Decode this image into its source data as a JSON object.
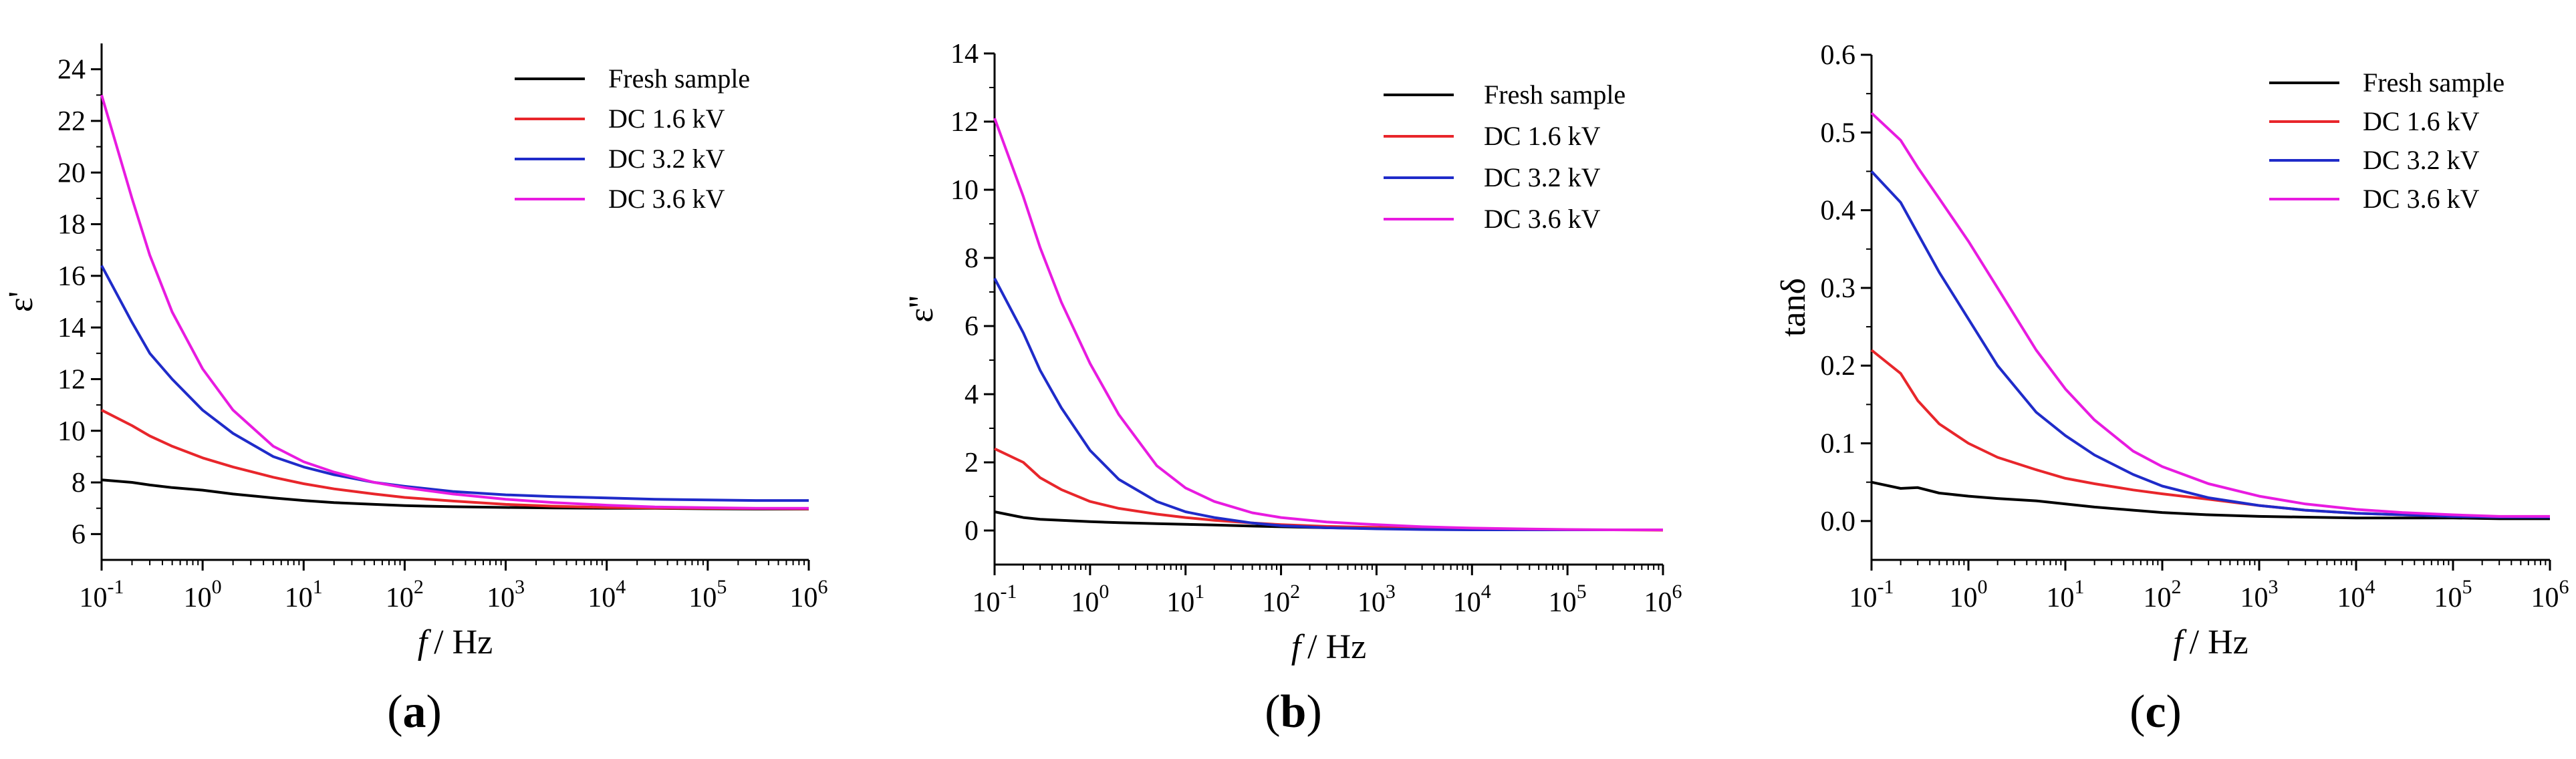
{
  "chart_data": [
    {
      "type": "line",
      "panel_label": "(a)",
      "panel_letter": "a",
      "ylabel": "ε'",
      "xlabel": "f / Hz",
      "xlabel_italic": "f",
      "xlabel_unit": "/ Hz",
      "xscale": "log",
      "x_ticks": [
        0.1,
        1,
        10,
        100,
        1000,
        10000,
        100000,
        1000000
      ],
      "x_tick_labels": [
        {
          "base": "10",
          "exp": "-1"
        },
        {
          "base": "10",
          "exp": "0"
        },
        {
          "base": "10",
          "exp": "1"
        },
        {
          "base": "10",
          "exp": "2"
        },
        {
          "base": "10",
          "exp": "3"
        },
        {
          "base": "10",
          "exp": "4"
        },
        {
          "base": "10",
          "exp": "5"
        },
        {
          "base": "10",
          "exp": "6"
        }
      ],
      "ylim": [
        5,
        25
      ],
      "y_ticks": [
        6,
        8,
        10,
        12,
        14,
        16,
        18,
        20,
        22,
        24
      ],
      "y_tick_labels": [
        "6",
        "8",
        "10",
        "12",
        "14",
        "16",
        "18",
        "20",
        "22",
        "24"
      ],
      "legend_position": "top-right",
      "x": [
        0.1,
        0.2,
        0.3,
        0.5,
        1,
        2,
        5,
        10,
        20,
        50,
        100,
        300,
        1000,
        3000,
        10000,
        30000,
        100000,
        300000,
        1000000
      ],
      "series": [
        {
          "name": "Fresh sample",
          "color": "#000000",
          "values": [
            8.1,
            8.0,
            7.9,
            7.8,
            7.7,
            7.55,
            7.4,
            7.3,
            7.22,
            7.15,
            7.1,
            7.06,
            7.03,
            7.01,
            7.0,
            7.0,
            6.98,
            6.97,
            6.97
          ]
        },
        {
          "name": "DC 1.6 kV",
          "color": "#e8262b",
          "values": [
            10.8,
            10.2,
            9.8,
            9.4,
            8.95,
            8.6,
            8.2,
            7.95,
            7.75,
            7.55,
            7.42,
            7.28,
            7.15,
            7.08,
            7.03,
            7.01,
            7.0,
            6.99,
            6.98
          ]
        },
        {
          "name": "DC 3.2 kV",
          "color": "#1f2bc9",
          "values": [
            16.4,
            14.2,
            13.0,
            12.0,
            10.8,
            9.9,
            9.0,
            8.6,
            8.3,
            8.0,
            7.85,
            7.65,
            7.52,
            7.45,
            7.4,
            7.35,
            7.32,
            7.3,
            7.3
          ]
        },
        {
          "name": "DC 3.6 kV",
          "color": "#e81be0",
          "values": [
            23.0,
            19.0,
            16.8,
            14.6,
            12.4,
            10.8,
            9.4,
            8.8,
            8.4,
            8.0,
            7.8,
            7.55,
            7.35,
            7.22,
            7.12,
            7.05,
            7.02,
            7.0,
            7.0
          ]
        }
      ]
    },
    {
      "type": "line",
      "panel_label": "(b)",
      "panel_letter": "b",
      "ylabel": "ε''",
      "xlabel": "f / Hz",
      "xlabel_italic": "f",
      "xlabel_unit": "/ Hz",
      "xscale": "log",
      "x_ticks": [
        0.1,
        1,
        10,
        100,
        1000,
        10000,
        100000,
        1000000
      ],
      "x_tick_labels": [
        {
          "base": "10",
          "exp": "-1"
        },
        {
          "base": "10",
          "exp": "0"
        },
        {
          "base": "10",
          "exp": "1"
        },
        {
          "base": "10",
          "exp": "2"
        },
        {
          "base": "10",
          "exp": "3"
        },
        {
          "base": "10",
          "exp": "4"
        },
        {
          "base": "10",
          "exp": "5"
        },
        {
          "base": "10",
          "exp": "6"
        }
      ],
      "ylim": [
        -1,
        14
      ],
      "y_ticks": [
        0,
        2,
        4,
        6,
        8,
        10,
        12,
        14
      ],
      "y_tick_labels": [
        "0",
        "2",
        "4",
        "6",
        "8",
        "10",
        "12",
        "14"
      ],
      "legend_position": "top-right",
      "x": [
        0.1,
        0.2,
        0.3,
        0.5,
        1,
        2,
        5,
        10,
        20,
        50,
        100,
        300,
        1000,
        3000,
        10000,
        30000,
        100000,
        300000,
        1000000
      ],
      "series": [
        {
          "name": "Fresh sample",
          "color": "#000000",
          "values": [
            0.55,
            0.38,
            0.33,
            0.3,
            0.26,
            0.23,
            0.2,
            0.18,
            0.16,
            0.13,
            0.11,
            0.08,
            0.06,
            0.04,
            0.03,
            0.02,
            0.02,
            0.02,
            0.02
          ]
        },
        {
          "name": "DC 1.6 kV",
          "color": "#e8262b",
          "values": [
            2.4,
            2.0,
            1.55,
            1.2,
            0.85,
            0.65,
            0.48,
            0.38,
            0.3,
            0.22,
            0.17,
            0.12,
            0.09,
            0.06,
            0.04,
            0.03,
            0.02,
            0.02,
            0.01
          ]
        },
        {
          "name": "DC 3.2 kV",
          "color": "#1f2bc9",
          "values": [
            7.4,
            5.8,
            4.7,
            3.6,
            2.35,
            1.5,
            0.85,
            0.55,
            0.38,
            0.22,
            0.14,
            0.08,
            0.05,
            0.03,
            0.02,
            0.02,
            0.02,
            0.02,
            0.02
          ]
        },
        {
          "name": "DC 3.6 kV",
          "color": "#e81be0",
          "values": [
            12.1,
            9.8,
            8.3,
            6.7,
            4.9,
            3.4,
            1.9,
            1.25,
            0.85,
            0.52,
            0.38,
            0.25,
            0.17,
            0.11,
            0.07,
            0.05,
            0.03,
            0.02,
            0.02
          ]
        }
      ]
    },
    {
      "type": "line",
      "panel_label": "(c)",
      "panel_letter": "c",
      "ylabel": "tanδ",
      "xlabel": "f / Hz",
      "xlabel_italic": "f",
      "xlabel_unit": "/ Hz",
      "xscale": "log",
      "x_ticks": [
        0.1,
        1,
        10,
        100,
        1000,
        10000,
        100000,
        1000000
      ],
      "x_tick_labels": [
        {
          "base": "10",
          "exp": "-1"
        },
        {
          "base": "10",
          "exp": "0"
        },
        {
          "base": "10",
          "exp": "1"
        },
        {
          "base": "10",
          "exp": "2"
        },
        {
          "base": "10",
          "exp": "3"
        },
        {
          "base": "10",
          "exp": "4"
        },
        {
          "base": "10",
          "exp": "5"
        },
        {
          "base": "10",
          "exp": "6"
        }
      ],
      "ylim": [
        -0.05,
        0.6
      ],
      "y_ticks": [
        0.0,
        0.1,
        0.2,
        0.3,
        0.4,
        0.5,
        0.6
      ],
      "y_tick_labels": [
        "0.0",
        "0.1",
        "0.2",
        "0.3",
        "0.4",
        "0.5",
        "0.6"
      ],
      "legend_position": "top-right",
      "x": [
        0.1,
        0.2,
        0.3,
        0.5,
        1,
        2,
        5,
        10,
        20,
        50,
        100,
        300,
        1000,
        3000,
        10000,
        30000,
        100000,
        300000,
        1000000
      ],
      "series": [
        {
          "name": "Fresh sample",
          "color": "#000000",
          "values": [
            0.05,
            0.042,
            0.043,
            0.036,
            0.032,
            0.029,
            0.026,
            0.022,
            0.018,
            0.014,
            0.011,
            0.008,
            0.006,
            0.005,
            0.004,
            0.004,
            0.004,
            0.003,
            0.003
          ]
        },
        {
          "name": "DC 1.6 kV",
          "color": "#e8262b",
          "values": [
            0.22,
            0.19,
            0.155,
            0.125,
            0.1,
            0.082,
            0.066,
            0.055,
            0.048,
            0.04,
            0.035,
            0.028,
            0.02,
            0.014,
            0.01,
            0.008,
            0.006,
            0.005,
            0.005
          ]
        },
        {
          "name": "DC 3.2 kV",
          "color": "#1f2bc9",
          "values": [
            0.45,
            0.41,
            0.37,
            0.32,
            0.26,
            0.2,
            0.14,
            0.11,
            0.085,
            0.06,
            0.045,
            0.03,
            0.02,
            0.014,
            0.01,
            0.008,
            0.006,
            0.005,
            0.005
          ]
        },
        {
          "name": "DC 3.6 kV",
          "color": "#e81be0",
          "values": [
            0.525,
            0.49,
            0.455,
            0.415,
            0.36,
            0.3,
            0.22,
            0.17,
            0.13,
            0.09,
            0.07,
            0.048,
            0.032,
            0.022,
            0.015,
            0.011,
            0.008,
            0.006,
            0.006
          ]
        }
      ]
    }
  ]
}
